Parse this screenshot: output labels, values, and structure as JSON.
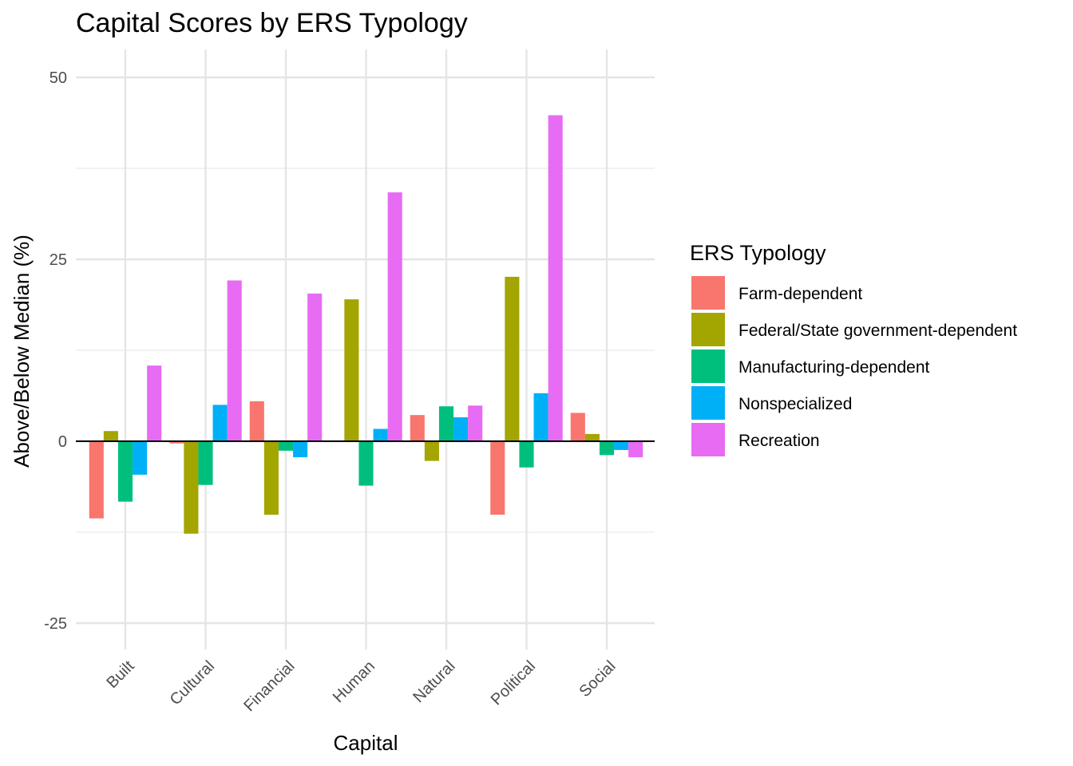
{
  "chart_data": {
    "type": "bar",
    "title": "Capital Scores by ERS Typology",
    "xlabel": "Capital",
    "ylabel": "Above/Below Median (%)",
    "categories": [
      "Built",
      "Cultural",
      "Financial",
      "Human",
      "Natural",
      "Political",
      "Social"
    ],
    "yticks": [
      "-25",
      "0",
      "25",
      "50"
    ],
    "ylim": [
      -28,
      54
    ],
    "grid": true,
    "legend": {
      "title": "ERS Typology",
      "position": "right"
    },
    "series": [
      {
        "name": "Farm-dependent",
        "color": "#F8766D",
        "values": [
          -10.6,
          -0.3,
          5.5,
          0.0,
          3.6,
          -10.1,
          3.9
        ]
      },
      {
        "name": "Federal/State government-dependent",
        "color": "#A3A500",
        "values": [
          1.4,
          -12.7,
          -10.1,
          19.5,
          -2.7,
          22.6,
          1.0
        ]
      },
      {
        "name": "Manufacturing-dependent",
        "color": "#00BF7D",
        "values": [
          -8.3,
          -6.0,
          -1.3,
          -6.1,
          4.8,
          -3.6,
          -1.9
        ]
      },
      {
        "name": "Nonspecialized",
        "color": "#00B0F6",
        "values": [
          -4.6,
          5.0,
          -2.2,
          1.7,
          3.3,
          6.6,
          -1.2
        ]
      },
      {
        "name": "Recreation",
        "color": "#E76BF3",
        "values": [
          10.4,
          22.1,
          20.3,
          34.2,
          4.9,
          44.8,
          -2.2
        ]
      }
    ]
  }
}
